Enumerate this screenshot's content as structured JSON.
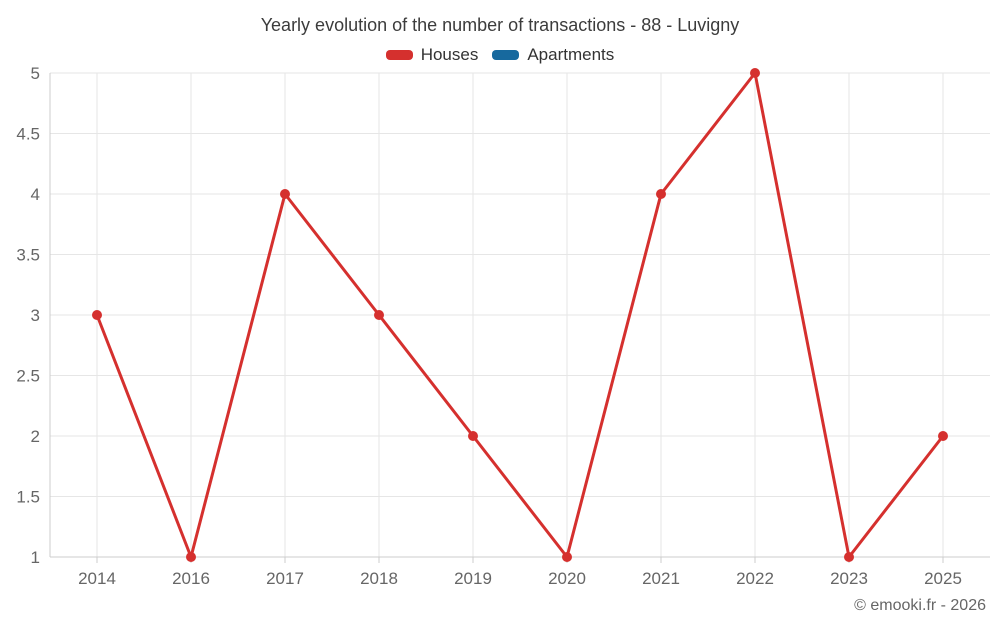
{
  "header": {
    "title": "Yearly evolution of the number of transactions - 88 - Luvigny"
  },
  "legend": {
    "position": "top",
    "items": [
      {
        "label": "Houses",
        "color": "#d5302e"
      },
      {
        "label": "Apartments",
        "color": "#17699e"
      }
    ]
  },
  "footer": {
    "copyright": "© emooki.fr - 2026"
  },
  "colors": {
    "background": "#ffffff",
    "grid": "#e6e6e6",
    "axis": "#cccccc",
    "axis_label": "#666666",
    "title_text": "#3c3c3c",
    "legend_text": "#333333",
    "houses_series": "#d5302e",
    "apartments_series": "#17699e"
  },
  "chart_data": {
    "type": "line",
    "title": "Yearly evolution of the number of transactions - 88 - Luvigny",
    "categories": [
      "2014",
      "2016",
      "2017",
      "2018",
      "2019",
      "2020",
      "2021",
      "2022",
      "2023",
      "2025"
    ],
    "series": [
      {
        "name": "Houses",
        "color": "#d5302e",
        "values": [
          3,
          1,
          4,
          3,
          2,
          1,
          4,
          5,
          1,
          2
        ]
      },
      {
        "name": "Apartments",
        "color": "#17699e",
        "values": []
      }
    ],
    "xlabel": "",
    "ylabel": "",
    "ylim": [
      1,
      5
    ],
    "yticks": [
      1,
      1.5,
      2,
      2.5,
      3,
      3.5,
      4,
      4.5,
      5
    ],
    "grid": true,
    "legend_position": "top",
    "marker_radius": 5,
    "line_width": 3
  }
}
